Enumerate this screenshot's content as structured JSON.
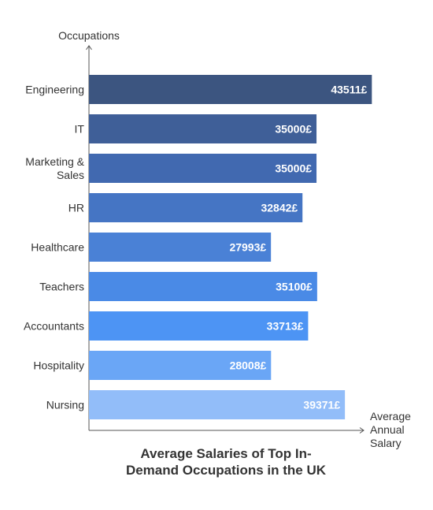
{
  "chart_data": {
    "type": "bar",
    "orientation": "horizontal",
    "title_lines": [
      "Average Salaries of Top In-",
      "Demand Occupations in the UK"
    ],
    "ylabel": "Occupations",
    "xlabel_lines": [
      "Average",
      "Annual",
      "Salary"
    ],
    "value_suffix": "£",
    "categories": [
      [
        "Engineering"
      ],
      [
        "IT"
      ],
      [
        "Marketing &",
        "Sales"
      ],
      [
        "HR"
      ],
      [
        "Healthcare"
      ],
      [
        "Teachers"
      ],
      [
        "Accountants"
      ],
      [
        "Hospitality"
      ],
      [
        "Nursing"
      ]
    ],
    "values": [
      43511,
      35000,
      35000,
      32842,
      27993,
      35100,
      33713,
      28008,
      39371
    ],
    "colors": [
      "#3c5580",
      "#3f5f98",
      "#4169b0",
      "#4575c4",
      "#4a81d6",
      "#4a8ae6",
      "#4d94f4",
      "#6aa6f6",
      "#92bdf9"
    ],
    "xlim": [
      0,
      46500
    ],
    "grid": false,
    "legend": "none"
  }
}
